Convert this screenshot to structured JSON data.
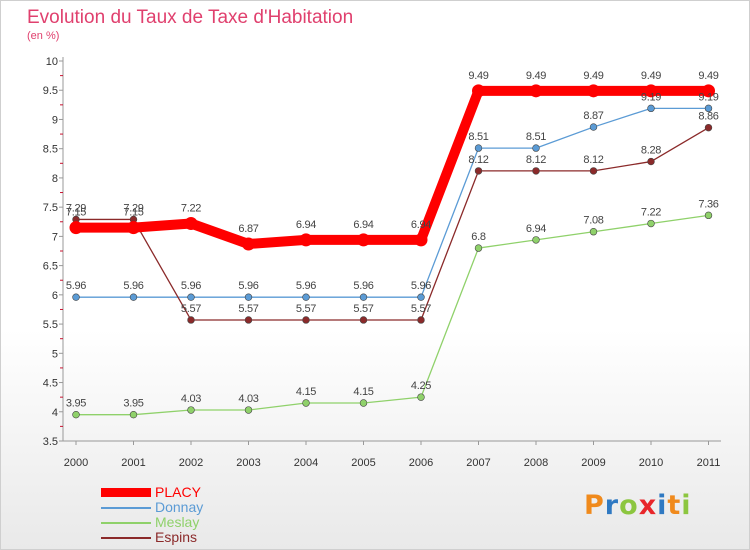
{
  "chart_data": {
    "type": "line",
    "title": "Evolution du Taux de Taxe d'Habitation",
    "subtitle": "(en %)",
    "x": [
      "2000",
      "2001",
      "2002",
      "2003",
      "2004",
      "2005",
      "2006",
      "2007",
      "2008",
      "2009",
      "2010",
      "2011"
    ],
    "ylim": [
      3.5,
      10
    ],
    "yticks": [
      "3.5",
      "4",
      "4.5",
      "5",
      "5.5",
      "6",
      "6.5",
      "7",
      "7.5",
      "8",
      "8.5",
      "9",
      "9.5",
      "10"
    ],
    "grid": false,
    "legend_position": "bottom-left",
    "series": [
      {
        "name": "PLACY",
        "color": "#ff0000",
        "values": [
          7.15,
          7.15,
          7.22,
          6.87,
          6.94,
          6.94,
          6.94,
          9.49,
          9.49,
          9.49,
          9.49,
          9.49
        ],
        "labels": [
          "7.15",
          "7.15",
          "7.22",
          "6.87",
          "6.94",
          "6.94",
          "6.94",
          "9.49",
          "9.49",
          "9.49",
          "9.49",
          "9.49"
        ]
      },
      {
        "name": "Donnay",
        "color": "#5b9bd5",
        "values": [
          5.96,
          5.96,
          5.96,
          5.96,
          5.96,
          5.96,
          5.96,
          8.51,
          8.51,
          8.87,
          9.19,
          9.19
        ],
        "labels": [
          "5.96",
          "5.96",
          "5.96",
          "5.96",
          "5.96",
          "5.96",
          "5.96",
          "8.51",
          "8.51",
          "8.87",
          "9.19",
          "9.19"
        ]
      },
      {
        "name": "Meslay",
        "color": "#8fd16a",
        "values": [
          3.95,
          3.95,
          4.03,
          4.03,
          4.15,
          4.15,
          4.25,
          6.8,
          6.94,
          7.08,
          7.22,
          7.36
        ],
        "labels": [
          "3.95",
          "3.95",
          "4.03",
          "4.03",
          "4.15",
          "4.15",
          "4.25",
          "6.8",
          "6.94",
          "7.08",
          "7.22",
          "7.36"
        ]
      },
      {
        "name": "Espins",
        "color": "#8b2a2a",
        "values": [
          7.29,
          7.29,
          5.57,
          5.57,
          5.57,
          5.57,
          5.57,
          8.12,
          8.12,
          8.12,
          8.28,
          8.86
        ],
        "labels": [
          "7.29",
          "7.29",
          "5.57",
          "5.57",
          "5.57",
          "5.57",
          "5.57",
          "8.12",
          "8.12",
          "8.12",
          "8.28",
          "8.86"
        ]
      }
    ]
  },
  "logo": {
    "letters": [
      {
        "ch": "P",
        "color": "#f08a1c"
      },
      {
        "ch": "r",
        "color": "#2f79c2"
      },
      {
        "ch": "o",
        "color": "#8cc63f"
      },
      {
        "ch": "x",
        "color": "#e8262a"
      },
      {
        "ch": "i",
        "color": "#2f79c2"
      },
      {
        "ch": "t",
        "color": "#f08a1c"
      },
      {
        "ch": "i",
        "color": "#8cc63f"
      }
    ]
  }
}
